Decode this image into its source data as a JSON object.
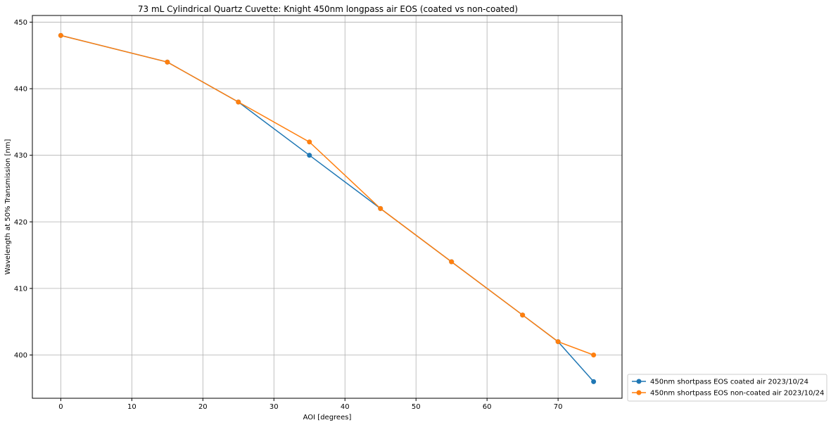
{
  "chart_data": {
    "type": "line",
    "title": "73 mL Cylindrical Quartz Cuvette: Knight 450nm longpass air EOS (coated vs non-coated)",
    "xlabel": "AOI [degrees]",
    "ylabel": "Wavelength at 50% Transmission [nm]",
    "xlim": [
      -4,
      79
    ],
    "ylim": [
      393.5,
      451
    ],
    "xticks": [
      0,
      10,
      20,
      30,
      40,
      50,
      60,
      70
    ],
    "yticks": [
      400,
      410,
      420,
      430,
      440,
      450
    ],
    "grid": true,
    "legend_position": "outside-bottom-right",
    "series": [
      {
        "name": "450nm shortpass EOS coated air 2023/10/24",
        "color": "#1f77b4",
        "x": [
          0,
          15,
          25,
          35,
          45,
          55,
          65,
          70,
          75
        ],
        "y": [
          448,
          444,
          438,
          430,
          422,
          414,
          406,
          402,
          396
        ]
      },
      {
        "name": "450nm shortpass EOS non-coated air 2023/10/24",
        "color": "#ff7f0e",
        "x": [
          0,
          15,
          25,
          35,
          45,
          55,
          65,
          70,
          75
        ],
        "y": [
          448,
          444,
          438,
          432,
          422,
          414,
          406,
          402,
          400
        ]
      }
    ]
  }
}
